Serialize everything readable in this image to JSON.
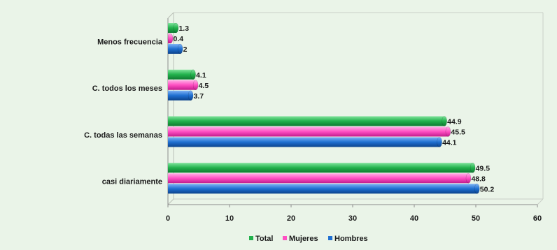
{
  "chart_data": {
    "type": "bar",
    "orientation": "horizontal",
    "categories": [
      "Menos frecuencia",
      "C. todos los meses",
      "C. todas las semanas",
      "casi diariamente"
    ],
    "series": [
      {
        "name": "Total",
        "color": "#22b14c",
        "values": [
          1.3,
          4.1,
          44.9,
          49.5
        ],
        "labels": [
          "1.3",
          "4.1",
          "44.9",
          "49.5"
        ]
      },
      {
        "name": "Mujeres",
        "color": "#ff4fc3",
        "values": [
          0.4,
          4.5,
          45.5,
          48.8
        ],
        "labels": [
          "0.4",
          "4.5",
          "45.5",
          "48.8"
        ]
      },
      {
        "name": "Hombres",
        "color": "#1f6fd1",
        "values": [
          2,
          3.7,
          44.1,
          50.2
        ],
        "labels": [
          "2",
          "3.7",
          "44.1",
          "50.2"
        ]
      }
    ],
    "xlim": [
      0,
      60
    ],
    "xticks": [
      "0",
      "10",
      "20",
      "30",
      "40",
      "50",
      "60"
    ],
    "legend_position": "bottom",
    "grid": false
  }
}
